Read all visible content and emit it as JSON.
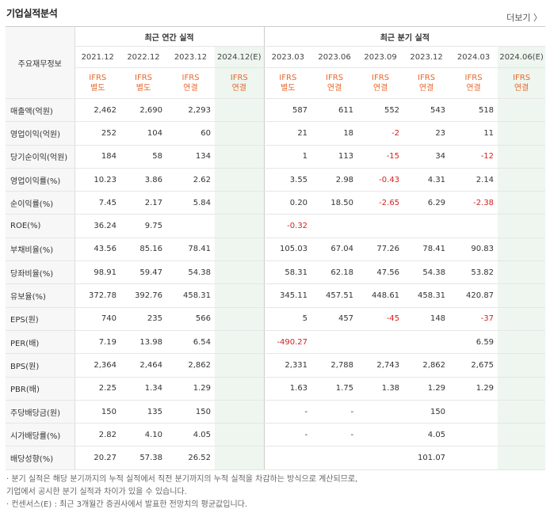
{
  "title": "기업실적분석",
  "more_label": "더보기 〉",
  "table": {
    "row_header": "주요재무정보",
    "annual_header": "최근 연간 실적",
    "quarterly_header": "최근 분기 실적",
    "periods": [
      "2021.12",
      "2022.12",
      "2023.12",
      "2024.12(E)",
      "2023.03",
      "2023.06",
      "2023.09",
      "2023.12",
      "2024.03",
      "2024.06(E)"
    ],
    "estimate_columns": [
      3,
      9
    ],
    "types": [
      [
        "IFRS",
        "별도"
      ],
      [
        "IFRS",
        "별도"
      ],
      [
        "IFRS",
        "연결"
      ],
      [
        "IFRS",
        "연결"
      ],
      [
        "IFRS",
        "별도"
      ],
      [
        "IFRS",
        "연결"
      ],
      [
        "IFRS",
        "연결"
      ],
      [
        "IFRS",
        "연결"
      ],
      [
        "IFRS",
        "연결"
      ],
      [
        "IFRS",
        "연결"
      ]
    ],
    "rows": [
      {
        "label": "매출액(억원)",
        "values": [
          "2,462",
          "2,690",
          "2,293",
          "",
          "587",
          "611",
          "552",
          "543",
          "518",
          ""
        ]
      },
      {
        "label": "영업이익(억원)",
        "values": [
          "252",
          "104",
          "60",
          "",
          "21",
          "18",
          "-2",
          "23",
          "11",
          ""
        ]
      },
      {
        "label": "당기순이익(억원)",
        "values": [
          "184",
          "58",
          "134",
          "",
          "1",
          "113",
          "-15",
          "34",
          "-12",
          ""
        ]
      },
      {
        "label": "영업이익률(%)",
        "values": [
          "10.23",
          "3.86",
          "2.62",
          "",
          "3.55",
          "2.98",
          "-0.43",
          "4.31",
          "2.14",
          ""
        ],
        "group_start": true
      },
      {
        "label": "순이익률(%)",
        "values": [
          "7.45",
          "2.17",
          "5.84",
          "",
          "0.20",
          "18.50",
          "-2.65",
          "6.29",
          "-2.38",
          ""
        ]
      },
      {
        "label": "ROE(%)",
        "values": [
          "36.24",
          "9.75",
          "",
          "",
          "-0.32",
          "",
          "",
          "",
          "",
          ""
        ]
      },
      {
        "label": "부채비율(%)",
        "values": [
          "43.56",
          "85.16",
          "78.41",
          "",
          "105.03",
          "67.04",
          "77.26",
          "78.41",
          "90.83",
          ""
        ],
        "group_start": true
      },
      {
        "label": "당좌비율(%)",
        "values": [
          "98.91",
          "59.47",
          "54.38",
          "",
          "58.31",
          "62.18",
          "47.56",
          "54.38",
          "53.82",
          ""
        ]
      },
      {
        "label": "유보율(%)",
        "values": [
          "372.78",
          "392.76",
          "458.31",
          "",
          "345.11",
          "457.51",
          "448.61",
          "458.31",
          "420.87",
          ""
        ]
      },
      {
        "label": "EPS(원)",
        "values": [
          "740",
          "235",
          "566",
          "",
          "5",
          "457",
          "-45",
          "148",
          "-37",
          ""
        ],
        "group_start": true
      },
      {
        "label": "PER(배)",
        "values": [
          "7.19",
          "13.98",
          "6.54",
          "",
          "-490.27",
          "",
          "",
          "",
          "6.59",
          ""
        ]
      },
      {
        "label": "BPS(원)",
        "values": [
          "2,364",
          "2,464",
          "2,862",
          "",
          "2,331",
          "2,788",
          "2,743",
          "2,862",
          "2,675",
          ""
        ]
      },
      {
        "label": "PBR(배)",
        "values": [
          "2.25",
          "1.34",
          "1.29",
          "",
          "1.63",
          "1.75",
          "1.38",
          "1.29",
          "1.29",
          ""
        ]
      },
      {
        "label": "주당배당금(원)",
        "values": [
          "150",
          "135",
          "150",
          "",
          "-",
          "-",
          "",
          "150",
          "",
          ""
        ],
        "group_start": true
      },
      {
        "label": "시가배당률(%)",
        "values": [
          "2.82",
          "4.10",
          "4.05",
          "",
          "-",
          "-",
          "",
          "4.05",
          "",
          ""
        ]
      },
      {
        "label": "배당성향(%)",
        "values": [
          "20.27",
          "57.38",
          "26.52",
          "",
          "",
          "",
          "",
          "101.07",
          "",
          ""
        ]
      }
    ]
  },
  "notes": [
    "· 분기 실적은 해당 분기까지의 누적 실적에서 직전 분기까지의 누적 실적을 차감하는 방식으로 계산되므로,",
    "   기업에서 공시한 분기 실적과 차이가 있을 수 있습니다.",
    "· 컨센서스(E) : 최근 3개월간 증권사에서 발표한 전망치의 평균값입니다."
  ],
  "colors": {
    "ifrs": "#e8672b",
    "negative": "#d7201f",
    "estimate_bg": "#eef6ef",
    "estimate_mark": "#2c9a3c"
  }
}
